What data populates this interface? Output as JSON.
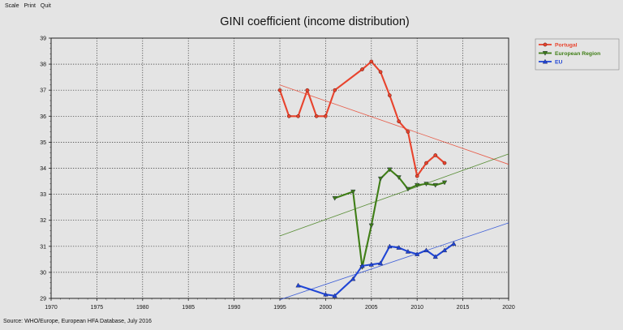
{
  "menu": {
    "items": [
      "Scale",
      "Print",
      "Quit"
    ]
  },
  "source_note": "Source: WHO/Europe, European HFA Database, July 2016",
  "colors": {
    "background": "#e4e4e4",
    "portugal": "#e8432d",
    "european_region": "#3f7e16",
    "eu": "#2046d6"
  },
  "chart_data": {
    "type": "line",
    "title": "GINI coefficient (income distribution)",
    "xlabel": "",
    "ylabel": "",
    "xlim": [
      1970,
      2020
    ],
    "ylim": [
      29,
      39
    ],
    "xticks": [
      1970,
      1975,
      1980,
      1985,
      1990,
      1995,
      2000,
      2005,
      2010,
      2015,
      2020
    ],
    "yticks": [
      29,
      30,
      31,
      32,
      33,
      34,
      35,
      36,
      37,
      38,
      39
    ],
    "grid": true,
    "legend_position": "top-right",
    "series": [
      {
        "name": "Portugal",
        "color": "#e8432d",
        "marker": "circle",
        "x": [
          1995,
          1996,
          1997,
          1998,
          1999,
          2000,
          2001,
          2004,
          2005,
          2006,
          2007,
          2008,
          2009,
          2010,
          2011,
          2012,
          2013
        ],
        "y": [
          37.0,
          36.0,
          36.0,
          37.0,
          36.0,
          36.0,
          37.0,
          37.8,
          38.1,
          37.7,
          36.8,
          35.8,
          35.4,
          33.7,
          34.2,
          34.5,
          34.2
        ],
        "trend": [
          [
            1995,
            37.2
          ],
          [
            2020,
            34.15
          ]
        ]
      },
      {
        "name": "European Region",
        "color": "#3f7e16",
        "marker": "triangle-down",
        "x": [
          2001,
          2003,
          2004,
          2005,
          2006,
          2007,
          2008,
          2009,
          2010,
          2011,
          2012,
          2013
        ],
        "y": [
          32.85,
          33.1,
          30.2,
          31.8,
          33.6,
          33.95,
          33.65,
          33.2,
          33.35,
          33.4,
          33.35,
          33.45
        ],
        "trend": [
          [
            1995,
            31.4
          ],
          [
            2020,
            34.55
          ]
        ]
      },
      {
        "name": "EU",
        "color": "#2046d6",
        "marker": "triangle-up",
        "x": [
          1997,
          2000,
          2001,
          2003,
          2004,
          2005,
          2006,
          2007,
          2008,
          2009,
          2010,
          2011,
          2012,
          2013,
          2014
        ],
        "y": [
          29.5,
          29.15,
          29.1,
          29.75,
          30.25,
          30.3,
          30.35,
          31.0,
          30.95,
          30.8,
          30.7,
          30.85,
          30.6,
          30.85,
          31.1
        ],
        "trend": [
          [
            1995,
            28.95
          ],
          [
            2020,
            31.9
          ]
        ]
      }
    ]
  }
}
